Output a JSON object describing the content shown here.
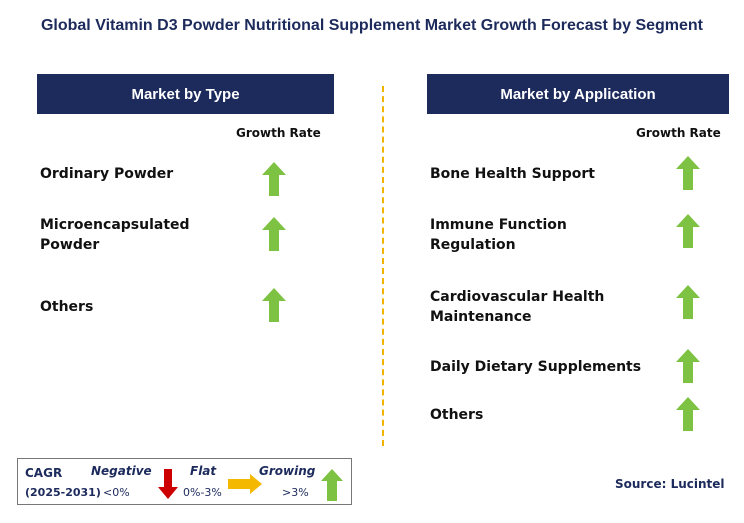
{
  "title": "Global Vitamin D3 Powder Nutritional Supplement Market Growth Forecast by Segment",
  "left_panel": {
    "header": "Market by Type",
    "growth_label": "Growth Rate",
    "rows": [
      {
        "label_lines": [
          "Ordinary Powder"
        ],
        "trend": "growing"
      },
      {
        "label_lines": [
          "Microencapsulated",
          "Powder"
        ],
        "trend": "growing"
      },
      {
        "label_lines": [
          "Others"
        ],
        "trend": "growing"
      }
    ]
  },
  "right_panel": {
    "header": "Market by Application",
    "growth_label": "Growth Rate",
    "rows": [
      {
        "label_lines": [
          "Bone Health Support"
        ],
        "trend": "growing"
      },
      {
        "label_lines": [
          "Immune Function",
          "Regulation"
        ],
        "trend": "growing"
      },
      {
        "label_lines": [
          "Cardiovascular Health",
          "Maintenance"
        ],
        "trend": "growing"
      },
      {
        "label_lines": [
          "Daily Dietary Supplements"
        ],
        "trend": "growing"
      },
      {
        "label_lines": [
          "Others"
        ],
        "trend": "growing"
      }
    ]
  },
  "legend": {
    "cagr_label": "CAGR",
    "period": "(2025-2031)",
    "negative": {
      "label": "Negative",
      "range": "<0%",
      "color": "#cc0000",
      "icon": "down-arrow-icon"
    },
    "flat": {
      "label": "Flat",
      "range": "0%-3%",
      "color": "#f5b800",
      "icon": "right-arrow-icon"
    },
    "growing": {
      "label": "Growing",
      "range": ">3%",
      "color": "#7dc242",
      "icon": "up-arrow-icon"
    }
  },
  "source": "Source: Lucintel",
  "colors": {
    "header_bg": "#1c2a5c",
    "divider": "#f0b400",
    "up_arrow": "#7dc242"
  }
}
